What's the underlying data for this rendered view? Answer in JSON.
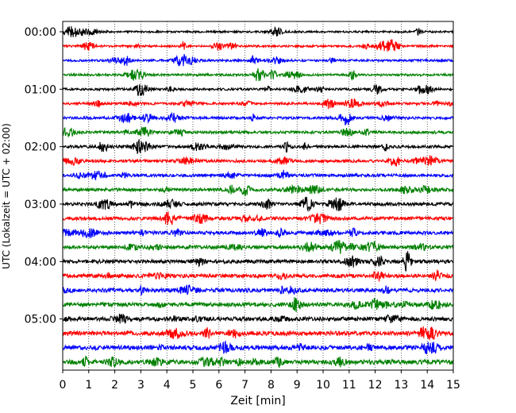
{
  "chart_data": {
    "type": "line",
    "title": "",
    "xlabel": "Zeit  [min]",
    "ylabel": "UTC (Lokalzeit = UTC + 02:00)",
    "xlim": [
      0,
      15
    ],
    "x_ticks": [
      "0",
      "1",
      "2",
      "3",
      "4",
      "5",
      "6",
      "7",
      "8",
      "9",
      "10",
      "11",
      "12",
      "13",
      "14",
      "15"
    ],
    "y_tick_labels": [
      "00:00",
      "01:00",
      "02:00",
      "03:00",
      "04:00",
      "05:00"
    ],
    "grid": {
      "x": true,
      "y": false,
      "style": "dotted"
    },
    "trace_colors": [
      "#000000",
      "#ff0000",
      "#0000ff",
      "#008000"
    ],
    "traces": [
      {
        "start_utc": "00:00",
        "color": "#000000"
      },
      {
        "start_utc": "00:15",
        "color": "#ff0000"
      },
      {
        "start_utc": "00:30",
        "color": "#0000ff"
      },
      {
        "start_utc": "00:45",
        "color": "#008000"
      },
      {
        "start_utc": "01:00",
        "color": "#000000"
      },
      {
        "start_utc": "01:15",
        "color": "#ff0000"
      },
      {
        "start_utc": "01:30",
        "color": "#0000ff"
      },
      {
        "start_utc": "01:45",
        "color": "#008000"
      },
      {
        "start_utc": "02:00",
        "color": "#000000"
      },
      {
        "start_utc": "02:15",
        "color": "#ff0000"
      },
      {
        "start_utc": "02:30",
        "color": "#0000ff"
      },
      {
        "start_utc": "02:45",
        "color": "#008000"
      },
      {
        "start_utc": "03:00",
        "color": "#000000"
      },
      {
        "start_utc": "03:15",
        "color": "#ff0000"
      },
      {
        "start_utc": "03:30",
        "color": "#0000ff"
      },
      {
        "start_utc": "03:45",
        "color": "#008000"
      },
      {
        "start_utc": "04:00",
        "color": "#000000"
      },
      {
        "start_utc": "04:15",
        "color": "#ff0000"
      },
      {
        "start_utc": "04:30",
        "color": "#0000ff"
      },
      {
        "start_utc": "04:45",
        "color": "#008000"
      },
      {
        "start_utc": "05:00",
        "color": "#000000"
      },
      {
        "start_utc": "05:15",
        "color": "#ff0000"
      },
      {
        "start_utc": "05:30",
        "color": "#0000ff"
      },
      {
        "start_utc": "05:45",
        "color": "#008000"
      }
    ]
  }
}
